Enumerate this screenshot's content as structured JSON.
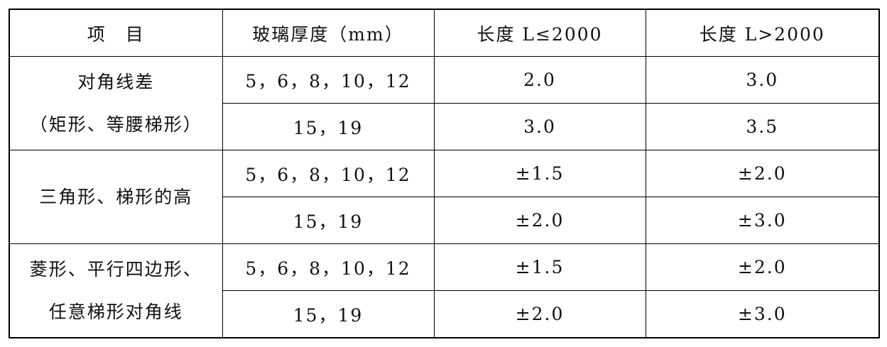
{
  "table": {
    "header": [
      "项　目",
      "玻璃厚度（mm）",
      "长度 L≤2000",
      "长度 L>2000"
    ],
    "groups": [
      {
        "label": [
          "对角线差",
          "（矩形、等腰梯形）"
        ],
        "rows": [
          [
            "5，6，8，10，12",
            "2.0",
            "3.0"
          ],
          [
            "15，19",
            "3.0",
            "3.5"
          ]
        ]
      },
      {
        "label": [
          "三角形、梯形的高"
        ],
        "rows": [
          [
            "5，6，8，10，12",
            "±1.5",
            "±2.0"
          ],
          [
            "15，19",
            "±2.0",
            "±3.0"
          ]
        ]
      },
      {
        "label": [
          "菱形、平行四边形、",
          "任意梯形对角线"
        ],
        "rows": [
          [
            "5，6，8，10，12",
            "±1.5",
            "±2.0"
          ],
          [
            "15，19",
            "±2.0",
            "±3.0"
          ]
        ]
      }
    ]
  }
}
